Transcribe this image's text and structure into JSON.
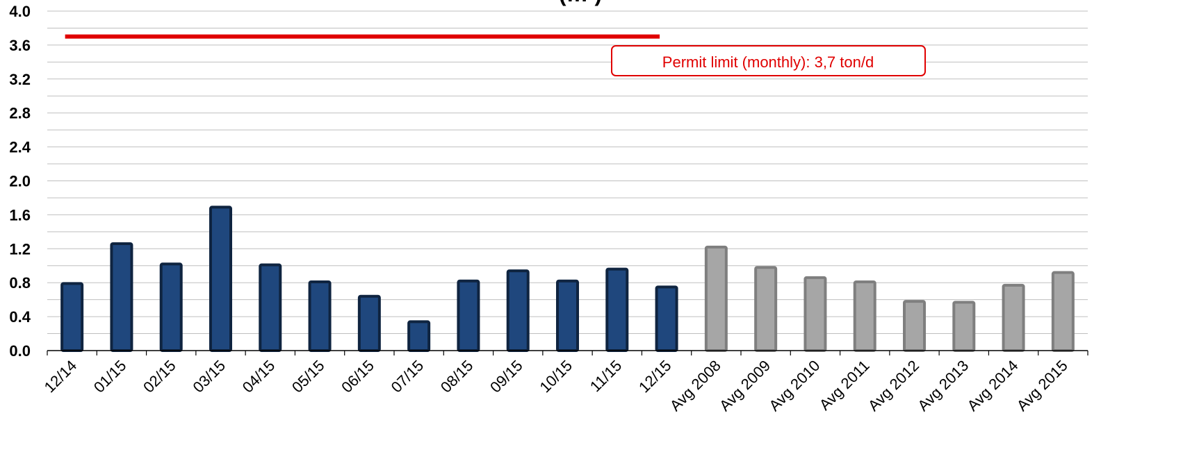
{
  "chart_data": {
    "type": "bar",
    "title_fragment": "(… )",
    "ylim": [
      0,
      4.0
    ],
    "y_ticks": [
      "0.0",
      "0.4",
      "0.8",
      "1.2",
      "1.6",
      "2.0",
      "2.4",
      "2.8",
      "3.2",
      "3.6",
      "4.0"
    ],
    "categories": [
      "12/14",
      "01/15",
      "02/15",
      "03/15",
      "04/15",
      "05/15",
      "06/15",
      "07/15",
      "08/15",
      "09/15",
      "10/15",
      "11/15",
      "12/15",
      "Avg 2008",
      "Avg 2009",
      "Avg 2010",
      "Avg 2011",
      "Avg 2012",
      "Avg 2013",
      "Avg 2014",
      "Avg 2015"
    ],
    "values": [
      0.79,
      1.26,
      1.02,
      1.69,
      1.01,
      0.81,
      0.64,
      0.34,
      0.82,
      0.94,
      0.82,
      0.96,
      0.75,
      1.22,
      0.98,
      0.86,
      0.81,
      0.58,
      0.57,
      0.77,
      0.92
    ],
    "bar_colors": {
      "monthly_fill": "#1f477d",
      "monthly_edge": "#0f2440",
      "average_fill": "#a6a6a6",
      "average_edge": "#7f7f7f"
    },
    "grid": true,
    "limit_line": {
      "value": 3.7,
      "from_category": "12/14",
      "to_category": "12/15",
      "color": "#e00000"
    },
    "annotations": [
      {
        "text": "Permit limit (monthly): 3,7 ton/d",
        "color": "#e00000"
      }
    ]
  }
}
